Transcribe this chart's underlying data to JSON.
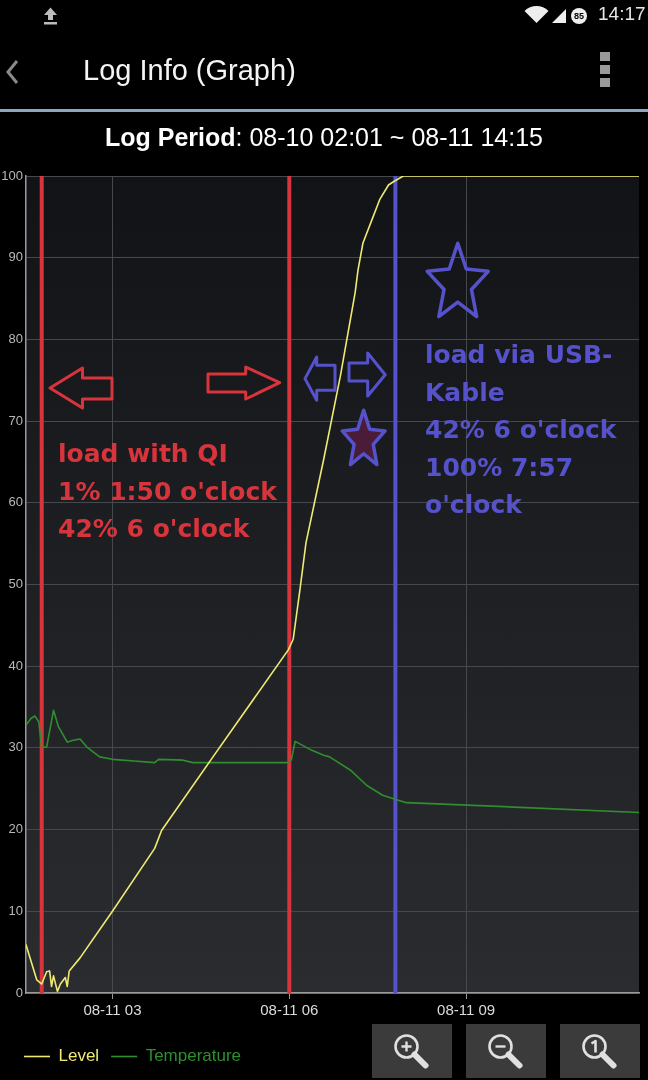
{
  "chart_data": {
    "type": "line",
    "title": "Log Info (Graph)",
    "subtitle": "Log Period: 08-10 02:01 ~ 08-11 14:15",
    "xlim": [
      "--08-11T01:32",
      "--08-11T11:56"
    ],
    "xticks": [
      {
        "value": "--08-11T03:00",
        "label": "08-11 03"
      },
      {
        "value": "--08-11T06:00",
        "label": "08-11 06"
      },
      {
        "value": "--08-11T09:00",
        "label": "08-11 09"
      }
    ],
    "ylim": [
      0,
      100
    ],
    "yticks": [
      0,
      10,
      20,
      30,
      40,
      50,
      60,
      70,
      80,
      90,
      100
    ],
    "grid": true,
    "legend": "bottom left",
    "series": [
      {
        "name": "Level",
        "color": "#eeea72",
        "x": [
          "--08-11T01:32",
          "--08-11T01:43",
          "--08-11T01:48",
          "--08-11T01:53",
          "--08-11T01:56",
          "--08-11T01:58",
          "--08-11T02:00",
          "--08-11T02:04",
          "--08-11T02:07",
          "--08-11T02:12",
          "--08-11T02:14",
          "--08-11T02:16",
          "--08-11T02:27",
          "--08-11T03:00",
          "--08-11T03:43",
          "--08-11T03:50",
          "--08-11T04:40",
          "--08-11T05:59",
          "--08-11T06:04",
          "--08-11T06:11",
          "--08-11T06:17",
          "--08-11T06:35",
          "--08-11T06:52",
          "--08-11T07:07",
          "--08-11T07:10",
          "--08-11T07:15",
          "--08-11T07:24",
          "--08-11T07:32",
          "--08-11T07:41",
          "--08-11T07:46",
          "--08-11T07:56",
          "--08-11T11:56"
        ],
        "values": [
          5.9,
          1.6,
          1.1,
          2.6,
          2.7,
          0.8,
          2.1,
          0.2,
          1.1,
          1.9,
          0.8,
          2.7,
          4.3,
          10.0,
          17.7,
          19.9,
          28.5,
          42.0,
          43.3,
          49.5,
          55.1,
          65.3,
          75.5,
          85.7,
          88.5,
          91.8,
          94.6,
          97.1,
          98.9,
          99.3,
          100,
          100
        ]
      },
      {
        "name": "Temperature",
        "color": "#2f8f2f",
        "x": [
          "--08-11T01:32",
          "--08-11T01:37",
          "--08-11T01:41",
          "--08-11T01:45",
          "--08-11T01:48",
          "--08-11T01:53",
          "--08-11T02:00",
          "--08-11T02:05",
          "--08-11T02:14",
          "--08-11T02:19",
          "--08-11T02:27",
          "--08-11T02:34",
          "--08-11T02:47",
          "--08-11T03:00",
          "--08-11T03:22",
          "--08-11T03:43",
          "--08-11T03:47",
          "--08-11T04:12",
          "--08-11T04:22",
          "--08-11T05:58",
          "--08-11T06:02",
          "--08-11T06:06",
          "--08-11T06:23",
          "--08-11T06:35",
          "--08-11T06:41",
          "--08-11T07:02",
          "--08-11T07:19",
          "--08-11T07:35",
          "--08-11T07:59",
          "--08-11T09:01",
          "--08-11T11:56"
        ],
        "values": [
          32.8,
          33.6,
          33.9,
          33.2,
          30.1,
          30.1,
          34.6,
          32.6,
          30.7,
          30.9,
          31.1,
          30.1,
          28.9,
          28.6,
          28.4,
          28.2,
          28.6,
          28.5,
          28.2,
          28.2,
          28.5,
          30.8,
          29.7,
          29.1,
          28.9,
          27.3,
          25.4,
          24.2,
          23.3,
          23.0,
          22.1
        ]
      }
    ],
    "ref_lines": [
      {
        "axis": "x",
        "value": "--08-11T01:48",
        "color": "#d8343c"
      },
      {
        "axis": "x",
        "value": "--08-11T06:00",
        "color": "#d8343c"
      },
      {
        "axis": "x",
        "value": "--08-11T07:48",
        "color": "#5552cc"
      }
    ],
    "annotations": [
      "load with QI\n1% 1:50 o'clock\n42% 6 o'clock",
      "load via USB-\nKable\n42% 6 o'clock\n100% 7:57\no'clock",
      "85",
      "14:17"
    ]
  }
}
